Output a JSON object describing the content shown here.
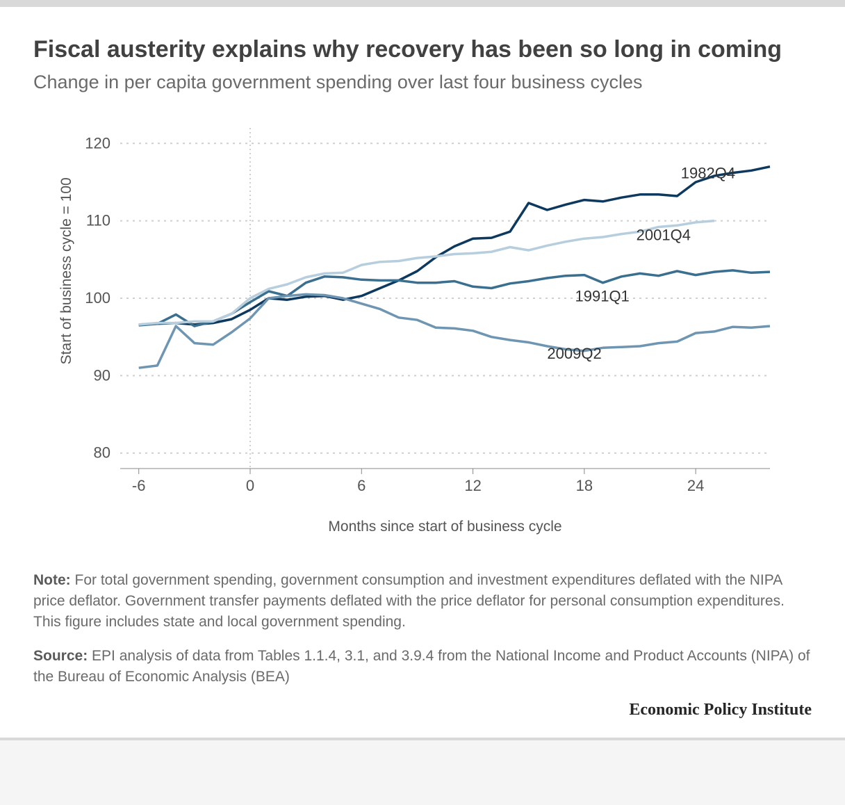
{
  "title": "Fiscal austerity explains why recovery has been so long in coming",
  "subtitle": "Change in per capita government spending over last four business cycles",
  "chart": {
    "type": "line",
    "background_color": "#ffffff",
    "grid_color": "#cfcfcf",
    "x_axis": {
      "title": "Months since start of business cycle",
      "min": -7,
      "max": 28,
      "ticks": [
        -6,
        0,
        6,
        12,
        18,
        24
      ]
    },
    "y_axis": {
      "title": "Start of business cycle = 100",
      "min": 78,
      "max": 122,
      "ticks": [
        80,
        90,
        100,
        110,
        120
      ]
    },
    "zero_vline_x": 0,
    "line_width": 3.5,
    "label_fontsize": 22,
    "axis_title_fontsize": 21,
    "series": [
      {
        "name": "1982Q4",
        "color": "#0d395f",
        "label_xy": [
          23.2,
          115.5
        ],
        "x": [
          -6,
          -5,
          -4,
          -3,
          -2,
          -1,
          0,
          1,
          2,
          3,
          4,
          5,
          6,
          7,
          8,
          9,
          10,
          11,
          12,
          13,
          14,
          15,
          16,
          17,
          18,
          19,
          20,
          21,
          22,
          23,
          24,
          25,
          26,
          27,
          28
        ],
        "y": [
          96.6,
          96.7,
          96.8,
          96.6,
          96.8,
          97.3,
          98.5,
          100,
          99.8,
          100.2,
          100.3,
          99.8,
          100.3,
          101.3,
          102.3,
          103.5,
          105.3,
          106.7,
          107.7,
          107.8,
          108.6,
          112.3,
          111.4,
          112.1,
          112.7,
          112.5,
          113.0,
          113.4,
          113.4,
          113.2,
          115.0,
          115.8,
          116.2,
          116.5,
          117.0
        ]
      },
      {
        "name": "1991Q1",
        "color": "#3a6f8f",
        "label_xy": [
          17.5,
          99.6
        ],
        "x": [
          -6,
          -5,
          -4,
          -3,
          -2,
          -1,
          0,
          1,
          2,
          3,
          4,
          5,
          6,
          7,
          8,
          9,
          10,
          11,
          12,
          13,
          14,
          15,
          16,
          17,
          18,
          19,
          20,
          21,
          22,
          23,
          24,
          25,
          26,
          27,
          28
        ],
        "y": [
          96.5,
          96.7,
          97.9,
          96.4,
          97.0,
          98.0,
          99.5,
          100.9,
          100.3,
          102.0,
          102.8,
          102.7,
          102.4,
          102.3,
          102.3,
          102.0,
          102.0,
          102.2,
          101.5,
          101.3,
          101.9,
          102.2,
          102.6,
          102.9,
          103.0,
          102.0,
          102.8,
          103.2,
          102.9,
          103.5,
          103.0,
          103.4,
          103.6,
          103.3,
          103.4
        ]
      },
      {
        "name": "2001Q4",
        "color": "#b6cedd",
        "label_xy": [
          20.8,
          107.5
        ],
        "x": [
          -6,
          -5,
          -4,
          -3,
          -2,
          -1,
          0,
          1,
          2,
          3,
          4,
          5,
          6,
          7,
          8,
          9,
          10,
          11,
          12,
          13,
          14,
          15,
          16,
          17,
          18,
          19,
          20,
          21,
          22,
          23,
          24,
          25
        ],
        "y": [
          96.6,
          96.8,
          96.8,
          97.0,
          97.0,
          98.0,
          100,
          101.2,
          101.8,
          102.7,
          103.2,
          103.3,
          104.3,
          104.7,
          104.8,
          105.2,
          105.4,
          105.7,
          105.8,
          106.0,
          106.6,
          106.2,
          106.8,
          107.3,
          107.7,
          107.9,
          108.3,
          108.6,
          109.2,
          109.4,
          109.8,
          110.0
        ]
      },
      {
        "name": "2009Q2",
        "color": "#6e95b1",
        "label_xy": [
          16,
          92.2
        ],
        "x": [
          -6,
          -5,
          -4,
          -3,
          -2,
          -1,
          0,
          1,
          2,
          3,
          4,
          5,
          6,
          7,
          8,
          9,
          10,
          11,
          12,
          13,
          14,
          15,
          16,
          17,
          18,
          19,
          20,
          21,
          22,
          23,
          24,
          25,
          26,
          27,
          28
        ],
        "y": [
          91.0,
          91.3,
          96.4,
          94.2,
          94.0,
          95.6,
          97.4,
          100,
          100.3,
          100.5,
          100.4,
          100.0,
          99.3,
          98.6,
          97.5,
          97.2,
          96.2,
          96.1,
          95.8,
          95.0,
          94.6,
          94.3,
          93.8,
          93.4,
          93.2,
          93.6,
          93.7,
          93.8,
          94.2,
          94.4,
          95.5,
          95.7,
          96.3,
          96.2,
          96.4
        ]
      }
    ]
  },
  "note_label": "Note:",
  "note_text": " For total government spending, government consumption and investment expenditures deflated with the NIPA price deflator. Government transfer payments deflated with the price deflator for personal consumption expenditures. This figure includes state and local government spending.",
  "source_label": "Source:",
  "source_text": " EPI analysis of data from Tables 1.1.4, 3.1, and 3.9.4 from the National Income and Product Accounts (NIPA) of the Bureau of Economic Analysis (BEA)",
  "footer": "Economic Policy Institute"
}
